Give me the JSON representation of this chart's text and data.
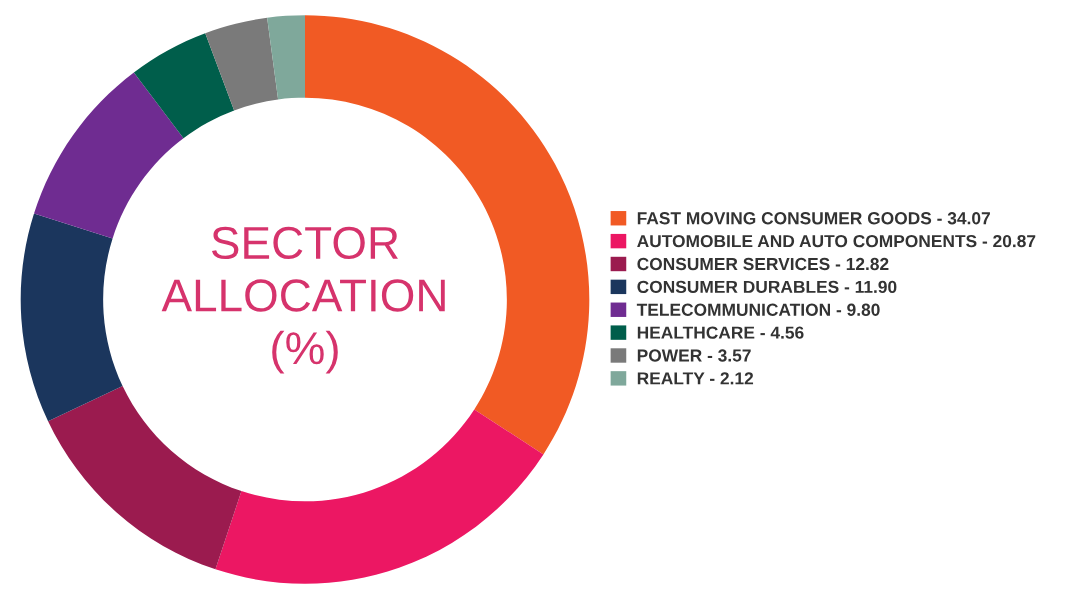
{
  "chart_data": {
    "type": "donut",
    "title": "SECTOR\nALLOCATION\n(%)",
    "categories": [
      "FAST MOVING CONSUMER GOODS - 34.07",
      "AUTOMOBILE AND AUTO COMPONENTS - 20.87",
      "CONSUMER SERVICES - 12.82",
      "CONSUMER DURABLES - 11.90",
      "TELECOMMUNICATION - 9.80",
      "HEALTHCARE - 4.56",
      "POWER - 3.57",
      "REALTY - 2.12"
    ],
    "values": [
      34.07,
      20.87,
      12.82,
      11.9,
      9.8,
      4.56,
      3.57,
      2.12
    ],
    "colors": [
      "#f15a24",
      "#ec1763",
      "#9b1b4f",
      "#1b365d",
      "#6f2c91",
      "#005e4b",
      "#7a7a7a",
      "#7fa89b"
    ],
    "legend": "right"
  }
}
